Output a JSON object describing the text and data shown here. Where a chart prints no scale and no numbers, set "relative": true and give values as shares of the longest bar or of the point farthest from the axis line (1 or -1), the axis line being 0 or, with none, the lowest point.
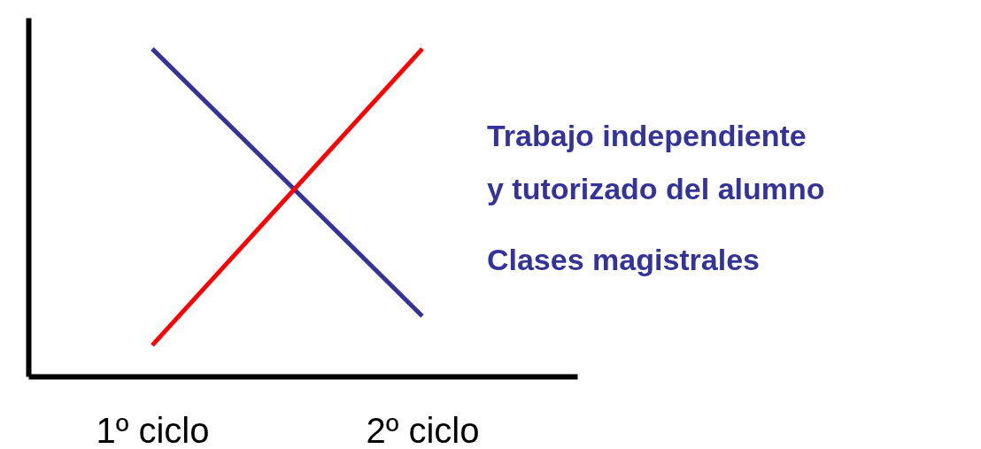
{
  "chart_data": {
    "type": "line",
    "relative": true,
    "categories": [
      "1º ciclo",
      "2º ciclo"
    ],
    "series": [
      {
        "name": "Clases magistrales",
        "color": "#333399",
        "values": [
          1,
          0.184
        ]
      },
      {
        "name": "Trabajo independiente y tutorizado del alumno",
        "color": "#ff0000",
        "values": [
          0.095,
          1
        ]
      }
    ],
    "legend": false,
    "grid": false,
    "marker": "none",
    "line_style": "solid"
  }
}
